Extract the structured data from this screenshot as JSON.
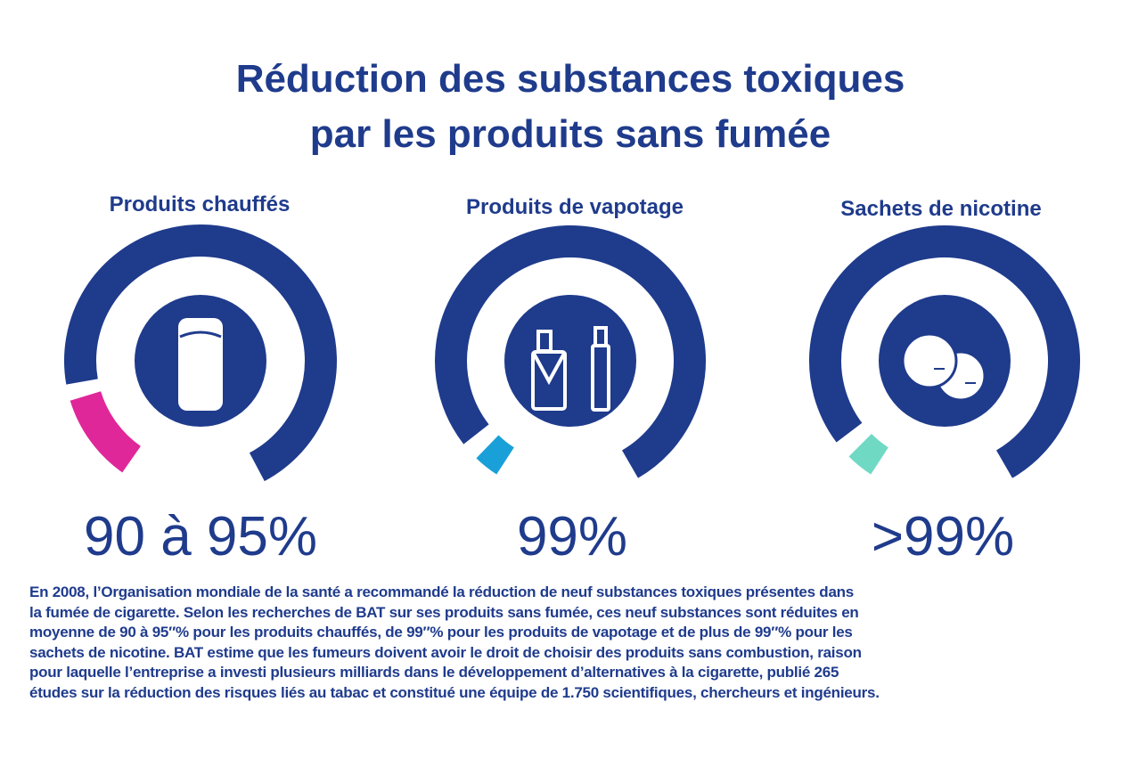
{
  "title": {
    "lines": [
      "Réduction des substances toxiques",
      "par les produits sans fumée"
    ]
  },
  "panels": [
    {
      "heading": "Produits chauffés",
      "value": "90 à 95%"
    },
    {
      "heading": "Produits de vapotage",
      "value": "99%"
    },
    {
      "heading": "Sachets de nicotine",
      "value": ">99%"
    }
  ],
  "footnote": {
    "lines": [
      "En 2008, l’Organisation mondiale de la santé a recommandé la réduction de neuf substances toxiques présentes dans",
      "la fumée de cigarette. Selon les recherches de BAT sur ses produits sans fumée, ces neuf substances sont réduites en",
      "moyenne de 90 à 95″% pour les produits chauffés, de 99″% pour les produits de vapotage et de plus de 99″% pour les",
      "sachets de nicotine. BAT estime que les fumeurs doivent avoir le droit de choisir des produits sans combustion, raison",
      "pour laquelle l’entreprise a investi plusieurs milliards dans le développement d’alternatives à la cigarette, publié 265",
      "études sur la réduction des risques liés au tabac et constitué une équipe de 1.750 scientifiques, chercheurs et ingénieurs."
    ]
  }
}
